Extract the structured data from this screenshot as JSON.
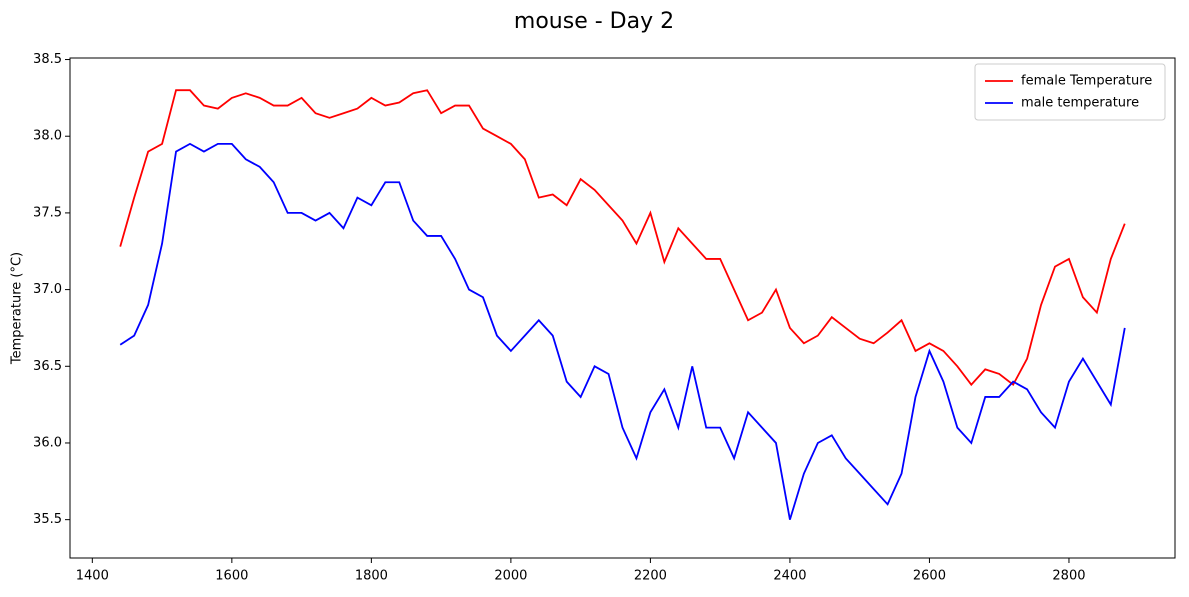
{
  "chart_data": {
    "type": "line",
    "title": "mouse - Day 2",
    "y_label": "Temperature (°C)",
    "x": [
      1440,
      1460,
      1480,
      1500,
      1520,
      1540,
      1560,
      1580,
      1600,
      1620,
      1640,
      1660,
      1680,
      1700,
      1720,
      1740,
      1760,
      1780,
      1800,
      1820,
      1840,
      1860,
      1880,
      1900,
      1920,
      1940,
      1960,
      1980,
      2000,
      2020,
      2040,
      2060,
      2080,
      2100,
      2120,
      2140,
      2160,
      2180,
      2200,
      2220,
      2240,
      2260,
      2280,
      2300,
      2320,
      2340,
      2360,
      2380,
      2400,
      2420,
      2440,
      2460,
      2480,
      2500,
      2520,
      2540,
      2560,
      2580,
      2600,
      2620,
      2640,
      2660,
      2680,
      2700,
      2720,
      2740,
      2760,
      2780,
      2800,
      2820,
      2840,
      2860,
      2880
    ],
    "series": [
      {
        "name": "female Temperature",
        "color": "#ff0000",
        "values": [
          37.28,
          37.6,
          37.9,
          37.95,
          38.3,
          38.3,
          38.2,
          38.18,
          38.25,
          38.28,
          38.25,
          38.2,
          38.2,
          38.25,
          38.15,
          38.12,
          38.15,
          38.18,
          38.25,
          38.2,
          38.22,
          38.28,
          38.3,
          38.15,
          38.2,
          38.2,
          38.05,
          38.0,
          37.95,
          37.85,
          37.6,
          37.62,
          37.55,
          37.72,
          37.65,
          37.55,
          37.45,
          37.3,
          37.5,
          37.18,
          37.4,
          37.3,
          37.2,
          37.2,
          37.0,
          36.8,
          36.85,
          37.0,
          36.75,
          36.65,
          36.7,
          36.82,
          36.75,
          36.68,
          36.65,
          36.72,
          36.8,
          36.6,
          36.65,
          36.6,
          36.5,
          36.38,
          36.48,
          36.45,
          36.38,
          36.55,
          36.9,
          37.15,
          37.2,
          36.95,
          36.85,
          37.2,
          37.43
        ]
      },
      {
        "name": "male temperature",
        "color": "#0000ff",
        "values": [
          36.64,
          36.7,
          36.9,
          37.3,
          37.9,
          37.95,
          37.9,
          37.95,
          37.95,
          37.85,
          37.8,
          37.7,
          37.5,
          37.5,
          37.45,
          37.5,
          37.4,
          37.6,
          37.55,
          37.7,
          37.7,
          37.45,
          37.35,
          37.35,
          37.2,
          37.0,
          36.95,
          36.7,
          36.6,
          36.7,
          36.8,
          36.7,
          36.4,
          36.3,
          36.5,
          36.45,
          36.1,
          35.9,
          36.2,
          36.35,
          36.1,
          36.5,
          36.1,
          36.1,
          35.9,
          36.2,
          36.1,
          36.0,
          35.5,
          35.8,
          36.0,
          36.05,
          35.9,
          35.8,
          35.7,
          35.6,
          35.8,
          36.3,
          36.6,
          36.4,
          36.1,
          36.0,
          36.3,
          36.3,
          36.4,
          36.35,
          36.2,
          36.1,
          36.4,
          36.55,
          36.4,
          36.25,
          36.75
        ]
      }
    ],
    "xlim": [
      1368,
      2952
    ],
    "xticks": [
      1400,
      1600,
      1800,
      2000,
      2200,
      2400,
      2600,
      2800
    ],
    "ylim": [
      35.25,
      38.51
    ],
    "yticks": [
      35.5,
      {
        "value": 36,
        "label": "36.0"
      },
      36.5,
      {
        "value": 37,
        "label": "37.0"
      },
      37.5,
      {
        "value": 38,
        "label": "38.0"
      },
      38.5
    ],
    "legend": "upper right",
    "grid": false
  }
}
